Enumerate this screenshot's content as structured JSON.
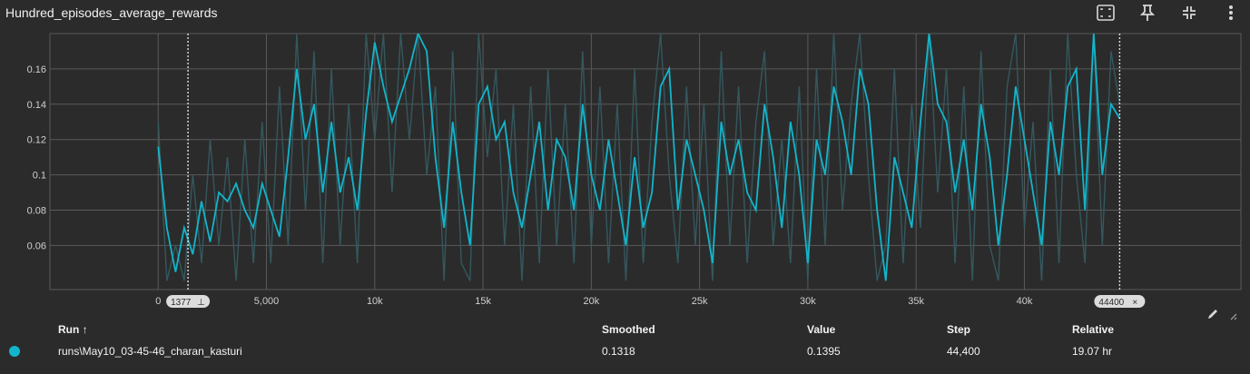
{
  "card": {
    "title": "Hundred_episodes_average_rewards"
  },
  "toolbar": {
    "fit_icon": "fit-domain-icon",
    "pin_icon": "pin-icon",
    "collapse_icon": "collapse-icon",
    "more_icon": "more-vert-icon"
  },
  "colors": {
    "accent": "#12b5cb",
    "raw": "#34585e",
    "background": "#2b2b2b",
    "grid": "#5a5a5a",
    "marker": "#dcdcdc"
  },
  "markers": {
    "left": "1377",
    "right": "44400"
  },
  "table": {
    "headers": {
      "run": "Run ↑",
      "smoothed": "Smoothed",
      "value": "Value",
      "step": "Step",
      "relative": "Relative"
    },
    "row": {
      "run": "runs\\May10_03-45-46_charan_kasturi",
      "smoothed": "0.1318",
      "value": "0.1395",
      "step": "44,400",
      "relative": "19.07 hr",
      "color": "#12b5cb"
    }
  },
  "chart_data": {
    "type": "line",
    "xlim": [
      -5000,
      50000
    ],
    "ylim": [
      0.035,
      0.18
    ],
    "x_ticks": [
      0,
      5000,
      10000,
      15000,
      20000,
      25000,
      30000,
      35000,
      40000
    ],
    "x_tick_labels": [
      "0",
      "5,000",
      "10k",
      "15k",
      "20k",
      "25k",
      "30k",
      "35k",
      "40k"
    ],
    "y_ticks": [
      0.06,
      0.08,
      0.1,
      0.12,
      0.14,
      0.16
    ],
    "y_tick_labels": [
      "0.06",
      "0.08",
      "0.1",
      "0.12",
      "0.14",
      "0.16"
    ],
    "grid": true,
    "series": [
      {
        "role": "smoothed",
        "x": [
          0,
          400,
          800,
          1200,
          1600,
          2000,
          2400,
          2800,
          3200,
          3600,
          4000,
          4400,
          4800,
          5200,
          5600,
          6000,
          6400,
          6800,
          7200,
          7600,
          8000,
          8400,
          8800,
          9200,
          9600,
          10000,
          10400,
          10800,
          11200,
          11600,
          12000,
          12400,
          12800,
          13200,
          13600,
          14000,
          14400,
          14800,
          15200,
          15600,
          16000,
          16400,
          16800,
          17200,
          17600,
          18000,
          18400,
          18800,
          19200,
          19600,
          20000,
          20400,
          20800,
          21200,
          21600,
          22000,
          22400,
          22800,
          23200,
          23600,
          24000,
          24400,
          24800,
          25200,
          25600,
          26000,
          26400,
          26800,
          27200,
          27600,
          28000,
          28400,
          28800,
          29200,
          29600,
          30000,
          30400,
          30800,
          31200,
          31600,
          32000,
          32400,
          32800,
          33200,
          33600,
          34000,
          34400,
          34800,
          35200,
          35600,
          36000,
          36400,
          36800,
          37200,
          37600,
          38000,
          38400,
          38800,
          39200,
          39600,
          40000,
          40400,
          40800,
          41200,
          41600,
          42000,
          42400,
          42800,
          43200,
          43600,
          44000,
          44400
        ],
        "y": [
          0.116,
          0.07,
          0.045,
          0.07,
          0.055,
          0.085,
          0.062,
          0.09,
          0.085,
          0.095,
          0.08,
          0.07,
          0.095,
          0.08,
          0.065,
          0.11,
          0.16,
          0.12,
          0.14,
          0.09,
          0.13,
          0.09,
          0.11,
          0.08,
          0.135,
          0.175,
          0.15,
          0.13,
          0.145,
          0.16,
          0.18,
          0.17,
          0.11,
          0.07,
          0.13,
          0.09,
          0.06,
          0.14,
          0.15,
          0.12,
          0.13,
          0.09,
          0.07,
          0.1,
          0.13,
          0.08,
          0.12,
          0.11,
          0.08,
          0.14,
          0.1,
          0.08,
          0.12,
          0.09,
          0.06,
          0.11,
          0.07,
          0.09,
          0.15,
          0.16,
          0.08,
          0.12,
          0.1,
          0.08,
          0.05,
          0.13,
          0.1,
          0.12,
          0.09,
          0.08,
          0.14,
          0.11,
          0.07,
          0.13,
          0.1,
          0.05,
          0.12,
          0.1,
          0.15,
          0.13,
          0.1,
          0.16,
          0.14,
          0.08,
          0.04,
          0.11,
          0.09,
          0.07,
          0.13,
          0.18,
          0.14,
          0.13,
          0.09,
          0.12,
          0.08,
          0.14,
          0.11,
          0.06,
          0.1,
          0.15,
          0.12,
          0.09,
          0.06,
          0.13,
          0.1,
          0.15,
          0.16,
          0.08,
          0.18,
          0.1,
          0.14,
          0.132
        ]
      },
      {
        "role": "raw",
        "x": [
          0,
          400,
          800,
          1200,
          1600,
          2000,
          2400,
          2800,
          3200,
          3600,
          4000,
          4400,
          4800,
          5200,
          5600,
          6000,
          6400,
          6800,
          7200,
          7600,
          8000,
          8400,
          8800,
          9200,
          9600,
          10000,
          10400,
          10800,
          11200,
          11600,
          12000,
          12400,
          12800,
          13200,
          13600,
          14000,
          14400,
          14800,
          15200,
          15600,
          16000,
          16400,
          16800,
          17200,
          17600,
          18000,
          18400,
          18800,
          19200,
          19600,
          20000,
          20400,
          20800,
          21200,
          21600,
          22000,
          22400,
          22800,
          23200,
          23600,
          24000,
          24400,
          24800,
          25200,
          25600,
          26000,
          26400,
          26800,
          27200,
          27600,
          28000,
          28400,
          28800,
          29200,
          29600,
          30000,
          30400,
          30800,
          31200,
          31600,
          32000,
          32400,
          32800,
          33200,
          33600,
          34000,
          34400,
          34800,
          35200,
          35600,
          36000,
          36400,
          36800,
          37200,
          37600,
          38000,
          38400,
          38800,
          39200,
          39600,
          40000,
          40400,
          40800,
          41200,
          41600,
          42000,
          42400,
          42800,
          43200,
          43600,
          44000,
          44400
        ],
        "y": [
          0.13,
          0.04,
          0.06,
          0.04,
          0.1,
          0.05,
          0.12,
          0.06,
          0.11,
          0.04,
          0.12,
          0.05,
          0.13,
          0.05,
          0.15,
          0.06,
          0.18,
          0.08,
          0.17,
          0.05,
          0.16,
          0.06,
          0.14,
          0.05,
          0.18,
          0.12,
          0.18,
          0.09,
          0.18,
          0.12,
          0.18,
          0.1,
          0.15,
          0.04,
          0.17,
          0.05,
          0.04,
          0.18,
          0.11,
          0.16,
          0.06,
          0.14,
          0.04,
          0.15,
          0.05,
          0.16,
          0.06,
          0.14,
          0.05,
          0.17,
          0.06,
          0.15,
          0.05,
          0.14,
          0.04,
          0.16,
          0.05,
          0.13,
          0.18,
          0.1,
          0.05,
          0.15,
          0.06,
          0.14,
          0.04,
          0.17,
          0.06,
          0.15,
          0.05,
          0.13,
          0.17,
          0.06,
          0.12,
          0.05,
          0.15,
          0.04,
          0.16,
          0.06,
          0.18,
          0.08,
          0.14,
          0.18,
          0.1,
          0.04,
          0.06,
          0.16,
          0.05,
          0.14,
          0.07,
          0.18,
          0.09,
          0.16,
          0.05,
          0.15,
          0.04,
          0.17,
          0.06,
          0.04,
          0.15,
          0.18,
          0.07,
          0.13,
          0.04,
          0.16,
          0.05,
          0.18,
          0.1,
          0.05,
          0.18,
          0.06,
          0.17,
          0.14
        ]
      }
    ]
  }
}
